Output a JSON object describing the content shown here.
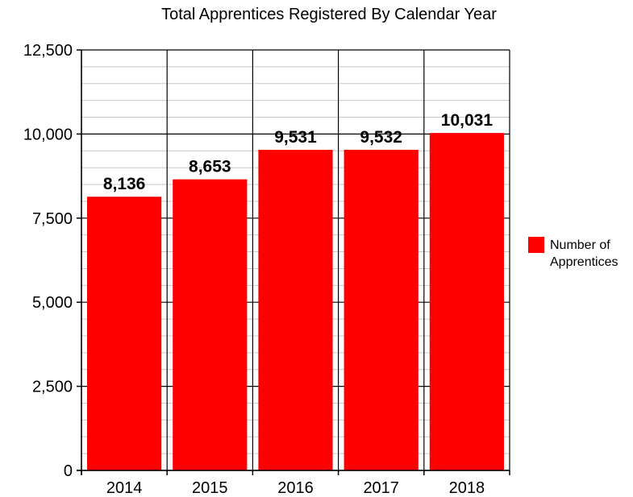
{
  "chart_data": {
    "type": "bar",
    "title": "Total Apprentices Registered By Calendar Year",
    "categories": [
      "2014",
      "2015",
      "2016",
      "2017",
      "2018"
    ],
    "series": [
      {
        "name": "Number of Apprentices",
        "legend_lines": [
          "Number of",
          "Apprentices"
        ],
        "values": [
          8136,
          8653,
          9531,
          9532,
          10031
        ],
        "data_labels": [
          "8,136",
          "8,653",
          "9,531",
          "9,532",
          "10,031"
        ],
        "color": "#ff0000"
      }
    ],
    "ylim": [
      0,
      12500
    ],
    "y_ticks": [
      {
        "value": 0,
        "label": "0"
      },
      {
        "value": 2500,
        "label": "2,500"
      },
      {
        "value": 5000,
        "label": "5,000"
      },
      {
        "value": 7500,
        "label": "7,500"
      },
      {
        "value": 10000,
        "label": "10,000"
      },
      {
        "value": 12500,
        "label": "12,500"
      }
    ],
    "y_minor_step": 500,
    "xlabel": "",
    "ylabel": "",
    "grid": true,
    "legend_position": "right"
  }
}
